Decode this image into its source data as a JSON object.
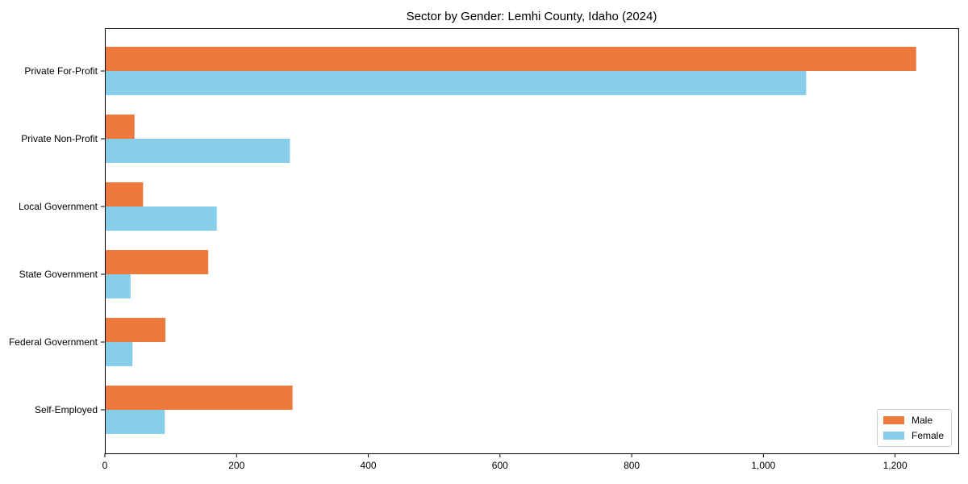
{
  "chart_data": {
    "type": "bar",
    "orientation": "horizontal",
    "title": "Sector by Gender: Lemhi County, Idaho (2024)",
    "categories": [
      "Private For-Profit",
      "Private Non-Profit",
      "Local Government",
      "State Government",
      "Federal Government",
      "Self-Employed"
    ],
    "series": [
      {
        "name": "Male",
        "color": "#EB7A3C",
        "values": [
          1232,
          45,
          58,
          157,
          92,
          285
        ]
      },
      {
        "name": "Female",
        "color": "#87CEEB",
        "values": [
          1065,
          281,
          170,
          39,
          42,
          91
        ]
      }
    ],
    "xlabel": "",
    "ylabel": "",
    "xlim": [
      0,
      1296
    ],
    "xticks": {
      "values": [
        0,
        200,
        400,
        600,
        800,
        1000,
        1200
      ],
      "labels": [
        "0",
        "200",
        "400",
        "600",
        "800",
        "1,000",
        "1,200"
      ]
    },
    "grid": false,
    "legend": {
      "position": "lower right"
    }
  },
  "colors": {
    "spine": "#000000",
    "tick_text": "#000000",
    "legend_border": "#cccccc",
    "background": "#ffffff"
  }
}
